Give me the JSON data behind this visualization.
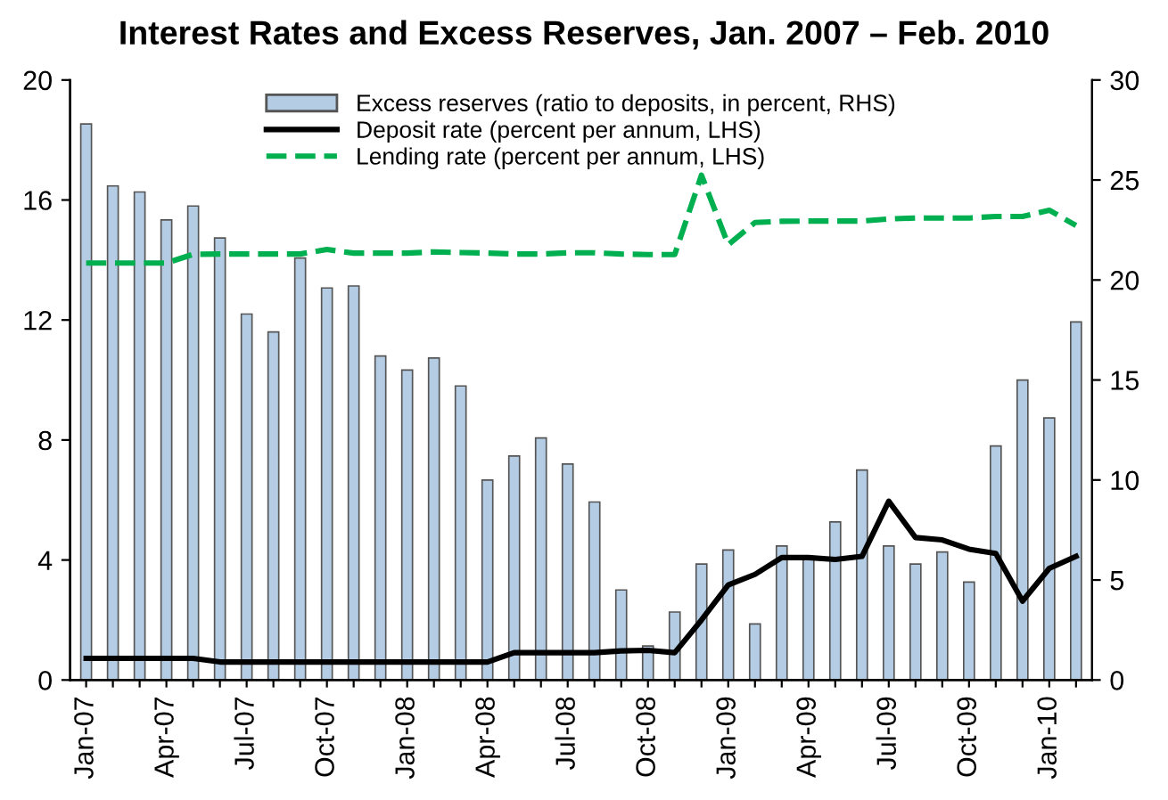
{
  "chart_data": {
    "type": "bar",
    "title": "Interest Rates and Excess Reserves, Jan. 2007 – Feb. 2010",
    "categories": [
      "Jan-07",
      null,
      null,
      "Apr-07",
      null,
      null,
      "Jul-07",
      null,
      null,
      "Oct-07",
      null,
      null,
      "Jan-08",
      null,
      null,
      "Apr-08",
      null,
      null,
      "Jul-08",
      null,
      null,
      "Oct-08",
      null,
      null,
      "Jan-09",
      null,
      null,
      "Apr-09",
      null,
      null,
      "Jul-09",
      null,
      null,
      "Oct-09",
      null,
      null,
      "Jan-10",
      null
    ],
    "series": [
      {
        "name": "Excess reserves (ratio to deposits, in percent, RHS)",
        "axis": "y2",
        "color": "#b4cde4",
        "values": [
          27.8,
          24.7,
          24.4,
          23.0,
          23.7,
          22.1,
          18.3,
          17.4,
          21.1,
          19.6,
          19.7,
          16.2,
          15.5,
          16.1,
          14.7,
          10.0,
          11.2,
          12.1,
          10.8,
          8.9,
          4.5,
          1.7,
          3.4,
          5.8,
          6.5,
          2.8,
          6.7,
          6.1,
          7.9,
          10.5,
          6.7,
          5.8,
          6.4,
          4.9,
          11.7,
          15.0,
          13.1,
          17.9
        ]
      },
      {
        "name": "Deposit rate (percent per annum, LHS)",
        "type": "line",
        "line_style": "solid",
        "color": "#000000",
        "values": [
          0.72,
          0.72,
          0.72,
          0.72,
          0.72,
          0.6,
          0.6,
          0.6,
          0.6,
          0.6,
          0.6,
          0.6,
          0.6,
          0.6,
          0.6,
          0.6,
          0.91,
          0.91,
          0.91,
          0.91,
          0.97,
          0.99,
          0.91,
          2.0,
          3.17,
          3.52,
          4.08,
          4.08,
          4.02,
          4.12,
          5.96,
          4.75,
          4.67,
          4.36,
          4.22,
          2.63,
          3.72,
          4.12
        ]
      },
      {
        "name": "Lending rate (percent per annum, LHS)",
        "type": "line",
        "line_style": "dashed",
        "color": "#00b050",
        "values": [
          13.9,
          13.9,
          13.9,
          13.9,
          14.19,
          14.2,
          14.2,
          14.2,
          14.2,
          14.35,
          14.23,
          14.23,
          14.23,
          14.27,
          14.25,
          14.23,
          14.2,
          14.2,
          14.24,
          14.24,
          14.2,
          14.18,
          14.18,
          16.83,
          14.51,
          15.25,
          15.29,
          15.3,
          15.3,
          15.3,
          15.37,
          15.4,
          15.4,
          15.4,
          15.45,
          15.45,
          15.66,
          15.15
        ]
      }
    ],
    "ylim": [
      0,
      20
    ],
    "yticks": [
      0,
      4,
      8,
      12,
      16,
      20
    ],
    "y2lim": [
      0,
      30
    ],
    "y2ticks": [
      0,
      5,
      10,
      15,
      20,
      25,
      30
    ],
    "legend": "top",
    "grid": false,
    "marker": "none"
  }
}
